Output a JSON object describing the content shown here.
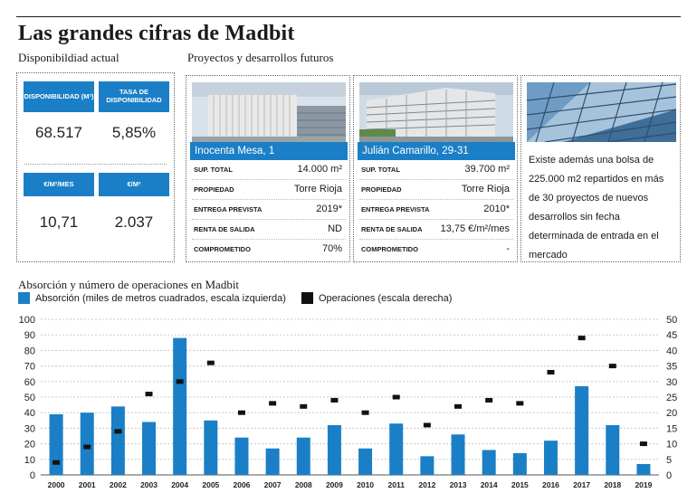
{
  "title": "Las grandes cifras de Madbit",
  "availability": {
    "label": "Disponibildiad actual",
    "kpis": [
      {
        "label": "DISPONIBILIDAD (M²)",
        "value": "68.517"
      },
      {
        "label": "TASA DE DISPONIBILIDAD",
        "value": "5,85%"
      },
      {
        "label": "€/M²/MES",
        "value": "10,71"
      },
      {
        "label": "€/M²",
        "value": "2.037"
      }
    ]
  },
  "projects": {
    "label": "Proyectos y desarrollos futuros",
    "cards": [
      {
        "name": "Inocenta Mesa, 1",
        "rows": [
          {
            "key": "SUP. TOTAL",
            "value": "14.000 m²"
          },
          {
            "key": "PROPIEDAD",
            "value": "Torre Rioja"
          },
          {
            "key": "ENTREGA PREVISTA",
            "value": "2019*"
          },
          {
            "key": "RENTA DE SALIDA",
            "value": "ND"
          },
          {
            "key": "COMPROMETIDO",
            "value": "70%"
          }
        ]
      },
      {
        "name": "Julián Camarillo, 29-31",
        "rows": [
          {
            "key": "SUP. TOTAL",
            "value": "39.700 m²"
          },
          {
            "key": "PROPIEDAD",
            "value": "Torre Rioja"
          },
          {
            "key": "ENTREGA PREVISTA",
            "value": "2010*"
          },
          {
            "key": "RENTA DE SALIDA",
            "value": "13,75 €/m²/mes"
          },
          {
            "key": "COMPROMETIDO",
            "value": "-"
          }
        ]
      }
    ],
    "info_text": "Existe además una bolsa de 225.000 m2 repartidos en más de 30 proyectos de nuevos desarrollos sin fecha determinada de entrada en el mercado"
  },
  "colors": {
    "accent": "#1a7fc6",
    "ops_marker": "#111111"
  },
  "chart_data": {
    "type": "bar",
    "title": "Absorción y número de operaciones en Madbit",
    "categories": [
      "2000",
      "2001",
      "2002",
      "2003",
      "2004",
      "2005",
      "2006",
      "2007",
      "2008",
      "2009",
      "2010",
      "2011",
      "2012",
      "2013",
      "2014",
      "2015",
      "2016",
      "2017",
      "2018",
      "2019"
    ],
    "series": [
      {
        "name": "Absorción (miles de metros cuadrados, escala izquierda)",
        "type": "bar",
        "axis": "left",
        "values": [
          39,
          40,
          44,
          34,
          88,
          35,
          24,
          17,
          24,
          32,
          17,
          33,
          12,
          26,
          16,
          14,
          22,
          57,
          32,
          7
        ]
      },
      {
        "name": "Operaciones (escala derecha)",
        "type": "marker",
        "axis": "right",
        "values": [
          4,
          9,
          14,
          26,
          30,
          36,
          20,
          23,
          22,
          24,
          20,
          25,
          16,
          22,
          24,
          23,
          33,
          44,
          35,
          10
        ]
      }
    ],
    "ylim_left": [
      0,
      100
    ],
    "ylim_right": [
      0,
      50
    ],
    "yticks_left": [
      0,
      10,
      20,
      30,
      40,
      50,
      60,
      70,
      80,
      90,
      100
    ],
    "yticks_right": [
      0,
      5,
      10,
      15,
      20,
      25,
      30,
      35,
      40,
      45,
      50
    ],
    "grid": true
  }
}
